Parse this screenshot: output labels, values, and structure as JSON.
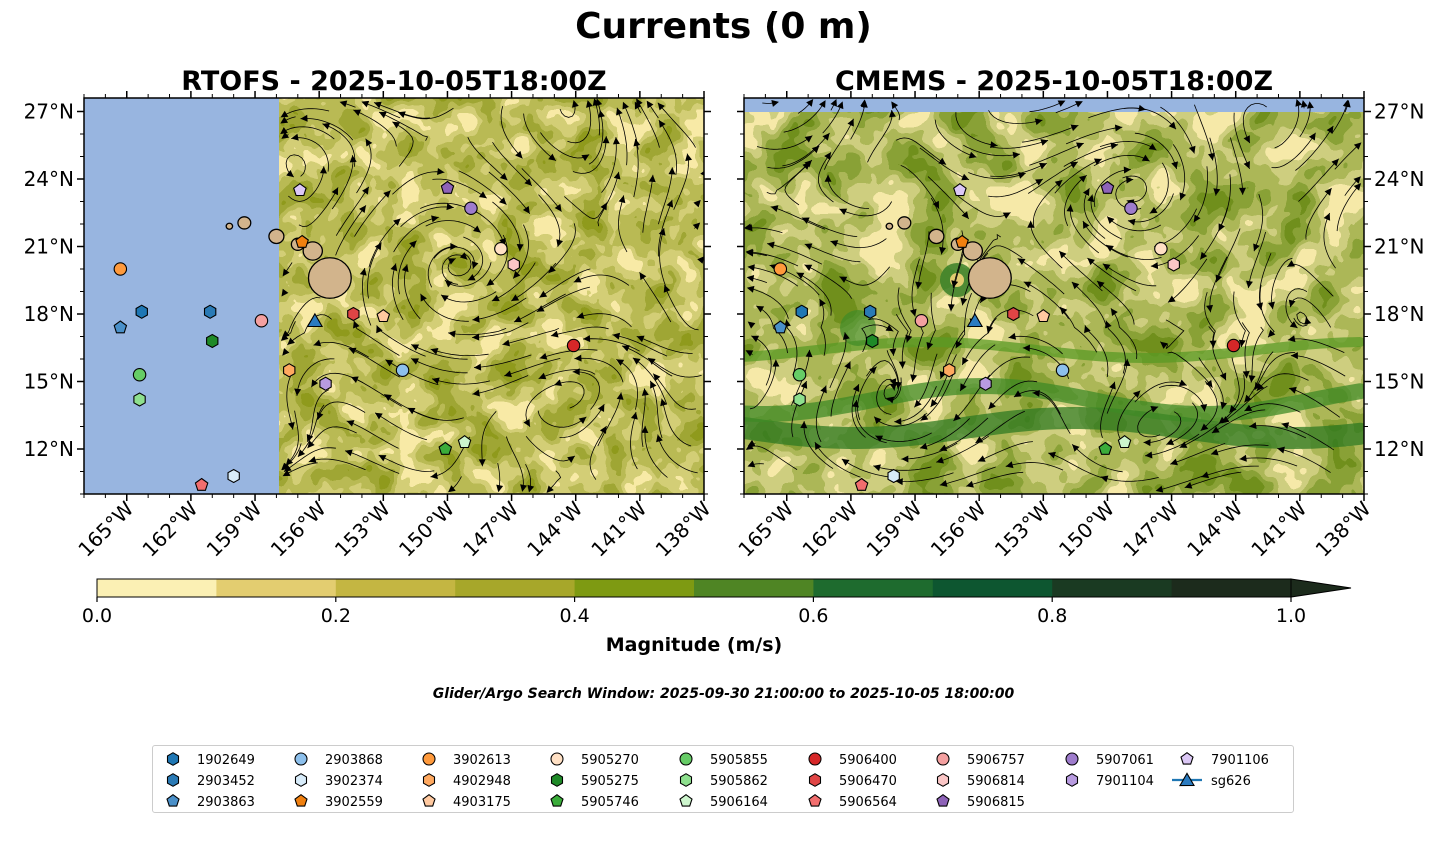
{
  "figure": {
    "suptitle": "Currents (0 m)",
    "search_window": "Glider/Argo Search Window: 2025-09-30 21:00:00 to 2025-10-05 18:00:00"
  },
  "chart_data": [
    {
      "type": "heatmap",
      "title": "RTOFS - 2025-10-05T18:00Z",
      "xlabel": "",
      "ylabel": "",
      "xlim": [
        -167,
        -138
      ],
      "ylim": [
        10,
        27.6
      ],
      "x_ticks": [
        -165,
        -162,
        -159,
        -156,
        -153,
        -150,
        -147,
        -144,
        -141,
        -138
      ],
      "x_tick_labels": [
        "165°W",
        "162°W",
        "159°W",
        "156°W",
        "153°W",
        "150°W",
        "147°W",
        "144°W",
        "141°W",
        "138°W"
      ],
      "y_ticks": [
        12,
        15,
        18,
        21,
        24,
        27
      ],
      "y_tick_labels": [
        "12°N",
        "15°N",
        "18°N",
        "21°N",
        "24°N",
        "27°N"
      ],
      "y_axis_side": "left",
      "data_coverage_lon": [
        -157.5,
        -138
      ],
      "field": "current speed with streamlines"
    },
    {
      "type": "heatmap",
      "title": "CMEMS - 2025-10-05T18:00Z",
      "xlabel": "",
      "ylabel": "",
      "xlim": [
        -167,
        -138
      ],
      "ylim": [
        10,
        27.6
      ],
      "x_ticks": [
        -165,
        -162,
        -159,
        -156,
        -153,
        -150,
        -147,
        -144,
        -141,
        -138
      ],
      "x_tick_labels": [
        "165°W",
        "162°W",
        "159°W",
        "156°W",
        "153°W",
        "150°W",
        "147°W",
        "144°W",
        "141°W",
        "138°W"
      ],
      "y_ticks": [
        12,
        15,
        18,
        21,
        24,
        27
      ],
      "y_tick_labels": [
        "12°N",
        "15°N",
        "18°N",
        "21°N",
        "24°N",
        "27°N"
      ],
      "y_axis_side": "right",
      "data_coverage_lat": [
        10,
        27
      ],
      "field": "current speed with streamlines"
    }
  ],
  "colorbar": {
    "label": "Magnitude (m/s)",
    "range": [
      0,
      1.0
    ],
    "ticks": [
      0.0,
      0.2,
      0.4,
      0.6,
      0.8,
      1.0
    ],
    "tick_labels": [
      "0.0",
      "0.2",
      "0.4",
      "0.6",
      "0.8",
      "1.0"
    ],
    "extend": "max",
    "colors": [
      "#fbf0b4",
      "#e3cd70",
      "#c4b642",
      "#a7a72a",
      "#7e9a12",
      "#4f8524",
      "#1e6b2e",
      "#0d5630",
      "#1a3a22",
      "#1c2b1c"
    ]
  },
  "colors": {
    "land_mask": "#98b5e0",
    "island": "#d2b48c"
  },
  "markers": [
    {
      "id": "1902649",
      "lon": -164.3,
      "lat": 18.1,
      "shape": "hexagon",
      "color": "#1f77b4"
    },
    {
      "id": "2903452",
      "lon": -161.1,
      "lat": 18.1,
      "shape": "hexagon",
      "color": "#2a7ab5"
    },
    {
      "id": "2903863",
      "lon": -165.3,
      "lat": 17.4,
      "shape": "pentagon",
      "color": "#4a90c9"
    },
    {
      "id": "2903868",
      "lon": -152.1,
      "lat": 15.5,
      "shape": "circle",
      "color": "#8dc0ec"
    },
    {
      "id": "3902374",
      "lon": -160.0,
      "lat": 10.8,
      "shape": "hexagon",
      "color": "#d8ecfa"
    },
    {
      "id": "3902559",
      "lon": -156.8,
      "lat": 21.2,
      "shape": "pentagon",
      "color": "#f08010"
    },
    {
      "id": "3902613",
      "lon": -165.3,
      "lat": 20.0,
      "shape": "circle",
      "color": "#ff9a3c"
    },
    {
      "id": "4902948",
      "lon": -157.4,
      "lat": 15.5,
      "shape": "hexagon",
      "color": "#ffa960"
    },
    {
      "id": "4903175",
      "lon": -153.0,
      "lat": 17.9,
      "shape": "pentagon",
      "color": "#ffc9a0"
    },
    {
      "id": "5905270",
      "lon": -147.5,
      "lat": 20.9,
      "shape": "circle",
      "color": "#ffe0c4"
    },
    {
      "id": "5905275",
      "lon": -161.0,
      "lat": 16.8,
      "shape": "hexagon",
      "color": "#1f8a28"
    },
    {
      "id": "5905746",
      "lon": -150.1,
      "lat": 12.0,
      "shape": "pentagon",
      "color": "#3aac3a"
    },
    {
      "id": "5905855",
      "lon": -164.4,
      "lat": 15.3,
      "shape": "circle",
      "color": "#66cc66"
    },
    {
      "id": "5905862",
      "lon": -164.4,
      "lat": 14.2,
      "shape": "hexagon",
      "color": "#8ee08e"
    },
    {
      "id": "5906164",
      "lon": -149.2,
      "lat": 12.3,
      "shape": "pentagon",
      "color": "#cdf5cd"
    },
    {
      "id": "5906400",
      "lon": -144.1,
      "lat": 16.6,
      "shape": "circle",
      "color": "#d62728"
    },
    {
      "id": "5906470",
      "lon": -154.4,
      "lat": 18.0,
      "shape": "hexagon",
      "color": "#e04545"
    },
    {
      "id": "5906564",
      "lon": -161.5,
      "lat": 10.4,
      "shape": "pentagon",
      "color": "#f26e6e"
    },
    {
      "id": "5906757",
      "lon": -158.7,
      "lat": 17.7,
      "shape": "circle",
      "color": "#f4a0a0"
    },
    {
      "id": "5906814",
      "lon": -146.9,
      "lat": 20.2,
      "shape": "hexagon",
      "color": "#fbc6c6"
    },
    {
      "id": "5906815",
      "lon": -150.0,
      "lat": 23.6,
      "shape": "pentagon",
      "color": "#8e63b8"
    },
    {
      "id": "5907061",
      "lon": -148.9,
      "lat": 22.7,
      "shape": "circle",
      "color": "#9e7ccc"
    },
    {
      "id": "7901104",
      "lon": -155.7,
      "lat": 14.9,
      "shape": "hexagon",
      "color": "#b89be0"
    },
    {
      "id": "7901106",
      "lon": -156.9,
      "lat": 23.5,
      "shape": "pentagon",
      "color": "#dcc8f6"
    },
    {
      "id": "sg626",
      "lon": -156.2,
      "lat": 17.7,
      "shape": "triangle",
      "color": "#2b7bc0"
    }
  ],
  "legend": {
    "placement": "bottom-center",
    "columns": [
      [
        "1902649",
        "2903452",
        "2903863"
      ],
      [
        "2903868",
        "3902374",
        "3902559"
      ],
      [
        "3902613",
        "4902948",
        "4903175"
      ],
      [
        "5905270",
        "5905275",
        "5905746"
      ],
      [
        "5905855",
        "5905862",
        "5906164"
      ],
      [
        "5906400",
        "5906470",
        "5906564"
      ],
      [
        "5906757",
        "5906814",
        "5906815"
      ],
      [
        "5907061",
        "7901104"
      ],
      [
        "7901106",
        "sg626"
      ]
    ]
  }
}
